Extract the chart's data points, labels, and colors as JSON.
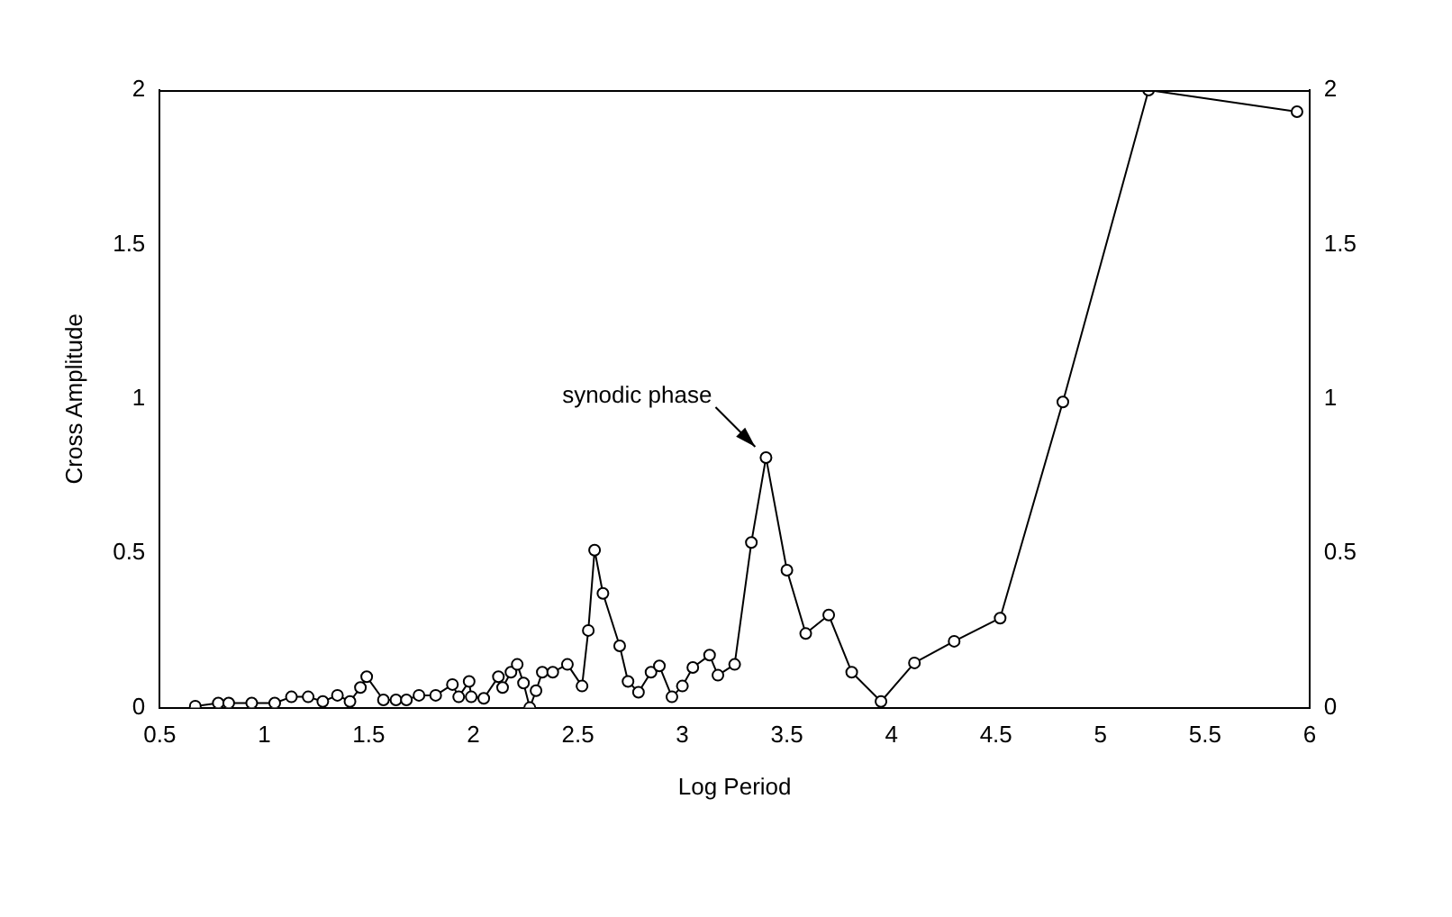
{
  "chart_data": {
    "type": "line",
    "xlabel": "Log Period",
    "ylabel": "Cross Amplitude",
    "x": [
      0.67,
      0.78,
      0.83,
      0.94,
      1.05,
      1.13,
      1.21,
      1.28,
      1.35,
      1.41,
      1.46,
      1.49,
      1.57,
      1.63,
      1.68,
      1.74,
      1.82,
      1.9,
      1.93,
      1.98,
      1.99,
      2.05,
      2.12,
      2.14,
      2.18,
      2.21,
      2.24,
      2.27,
      2.3,
      2.33,
      2.38,
      2.45,
      2.52,
      2.55,
      2.58,
      2.62,
      2.7,
      2.74,
      2.79,
      2.85,
      2.89,
      2.95,
      3.0,
      3.05,
      3.13,
      3.17,
      3.25,
      3.33,
      3.4,
      3.5,
      3.59,
      3.7,
      3.81,
      3.95,
      4.11,
      4.3,
      4.52,
      4.82,
      5.23,
      5.94
    ],
    "series": [
      {
        "color": "#000000",
        "values": [
          0.005,
          0.015,
          0.015,
          0.015,
          0.015,
          0.035,
          0.035,
          0.02,
          0.04,
          0.02,
          0.065,
          0.1,
          0.025,
          0.025,
          0.025,
          0.04,
          0.04,
          0.075,
          0.035,
          0.085,
          0.035,
          0.03,
          0.1,
          0.065,
          0.115,
          0.14,
          0.08,
          0.0,
          0.055,
          0.115,
          0.115,
          0.14,
          0.07,
          0.25,
          0.51,
          0.37,
          0.2,
          0.085,
          0.05,
          0.115,
          0.135,
          0.035,
          0.07,
          0.13,
          0.17,
          0.105,
          0.14,
          0.535,
          0.81,
          0.445,
          0.24,
          0.3,
          0.115,
          0.02,
          0.145,
          0.215,
          0.29,
          0.99,
          2.0,
          1.93
        ]
      }
    ],
    "xlim": [
      0.5,
      6
    ],
    "xticks": [
      0.5,
      1,
      1.5,
      2,
      2.5,
      3,
      3.5,
      4,
      4.5,
      5,
      5.5,
      6
    ],
    "ylim": [
      0,
      2
    ],
    "yticks": [
      0,
      0.5,
      1,
      1.5,
      2
    ],
    "y2lim": [
      0,
      2
    ],
    "y2ticks": [
      0,
      0.5,
      1,
      1.5,
      2
    ],
    "marker": "circle",
    "line_style": "solid",
    "grid": false,
    "legend": false,
    "annotations": [
      {
        "text": "synodic phase",
        "x": 3.4,
        "y": 0.81
      }
    ]
  }
}
